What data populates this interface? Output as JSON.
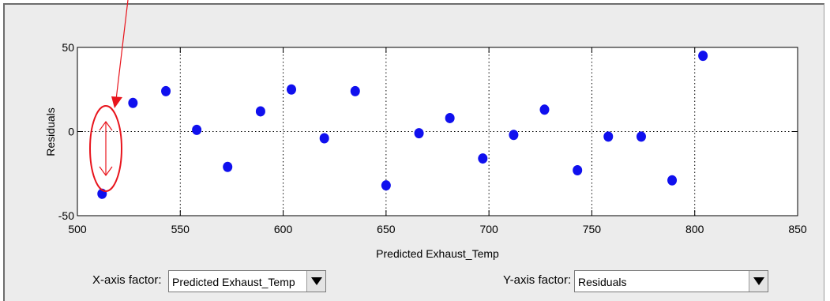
{
  "chart_data": {
    "type": "scatter",
    "xlabel": "Predicted Exhaust_Temp",
    "ylabel": "Residuals",
    "xlim": [
      500,
      850
    ],
    "ylim": [
      -50,
      50
    ],
    "xticks": [
      500,
      550,
      600,
      650,
      700,
      750,
      800,
      850
    ],
    "yticks": [
      -50,
      0,
      50
    ],
    "grid": true,
    "marker_color": "#1010ee",
    "points": [
      {
        "x": 512,
        "y": -37
      },
      {
        "x": 527,
        "y": 17
      },
      {
        "x": 543,
        "y": 24
      },
      {
        "x": 558,
        "y": 1
      },
      {
        "x": 573,
        "y": -21
      },
      {
        "x": 589,
        "y": 12
      },
      {
        "x": 604,
        "y": 25
      },
      {
        "x": 620,
        "y": -4
      },
      {
        "x": 635,
        "y": 24
      },
      {
        "x": 650,
        "y": -32
      },
      {
        "x": 666,
        "y": -1
      },
      {
        "x": 681,
        "y": 8
      },
      {
        "x": 697,
        "y": -16
      },
      {
        "x": 712,
        "y": -2
      },
      {
        "x": 727,
        "y": 13
      },
      {
        "x": 743,
        "y": -23
      },
      {
        "x": 758,
        "y": -3
      },
      {
        "x": 774,
        "y": -3
      },
      {
        "x": 789,
        "y": -29
      },
      {
        "x": 804,
        "y": 45
      }
    ]
  },
  "annotation": {
    "color": "#e8141c"
  },
  "controls": {
    "x_axis_label": "X-axis factor:",
    "x_axis_value": "Predicted Exhaust_Temp",
    "y_axis_label": "Y-axis factor:",
    "y_axis_value": "Residuals"
  }
}
